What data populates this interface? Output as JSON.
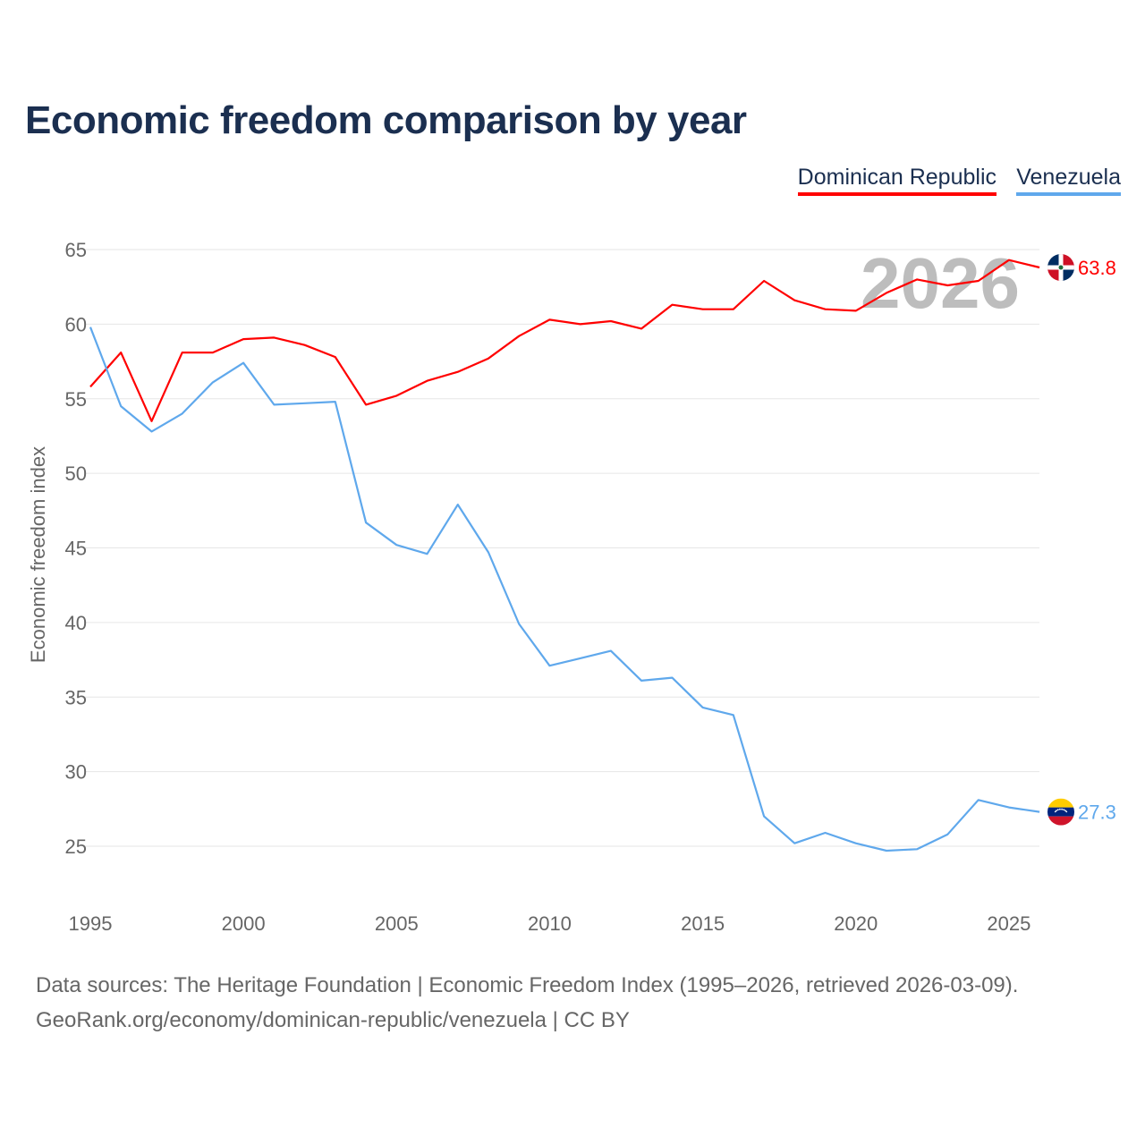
{
  "title": "Economic freedom comparison by year",
  "footer": {
    "line1": "Data sources: The Heritage Foundation | Economic Freedom Index (1995–2026, retrieved 2026-03-09).",
    "line2": "GeoRank.org/economy/dominican-republic/venezuela | CC BY"
  },
  "chart_data": {
    "type": "line",
    "title": "Economic freedom comparison by year",
    "xlabel": "",
    "ylabel": "Economic freedom index",
    "xlim": [
      1995,
      2026
    ],
    "ylim": [
      22,
      66
    ],
    "xticks": [
      "1995",
      "2000",
      "2005",
      "2010",
      "2015",
      "2020",
      "2025"
    ],
    "yticks": [
      "25",
      "30",
      "35",
      "40",
      "45",
      "50",
      "55",
      "60",
      "65"
    ],
    "grid": true,
    "legend": "top-right",
    "watermark": "2026",
    "x": [
      1995,
      1996,
      1997,
      1998,
      1999,
      2000,
      2001,
      2002,
      2003,
      2004,
      2005,
      2006,
      2007,
      2008,
      2009,
      2010,
      2011,
      2012,
      2013,
      2014,
      2015,
      2016,
      2017,
      2018,
      2019,
      2020,
      2021,
      2022,
      2023,
      2024,
      2025,
      2026
    ],
    "series": [
      {
        "name": "Dominican Republic",
        "color": "#ff0000",
        "end_label": "63.8",
        "values": [
          55.8,
          58.1,
          53.5,
          58.1,
          58.1,
          59.0,
          59.1,
          58.6,
          57.8,
          54.6,
          55.2,
          56.2,
          56.8,
          57.7,
          59.2,
          60.3,
          60.0,
          60.2,
          59.7,
          61.3,
          61.0,
          61.0,
          62.9,
          61.6,
          61.0,
          60.9,
          62.1,
          63.0,
          62.6,
          62.9,
          64.3,
          63.8
        ]
      },
      {
        "name": "Venezuela",
        "color": "#5fa8ec",
        "end_label": "27.3",
        "values": [
          59.8,
          54.5,
          52.8,
          54.0,
          56.1,
          57.4,
          54.6,
          54.7,
          54.8,
          46.7,
          45.2,
          44.6,
          47.9,
          44.7,
          39.9,
          37.1,
          37.6,
          38.1,
          36.1,
          36.3,
          34.3,
          33.8,
          27.0,
          25.2,
          25.9,
          25.2,
          24.7,
          24.8,
          25.8,
          28.1,
          27.6,
          27.3
        ]
      }
    ]
  }
}
